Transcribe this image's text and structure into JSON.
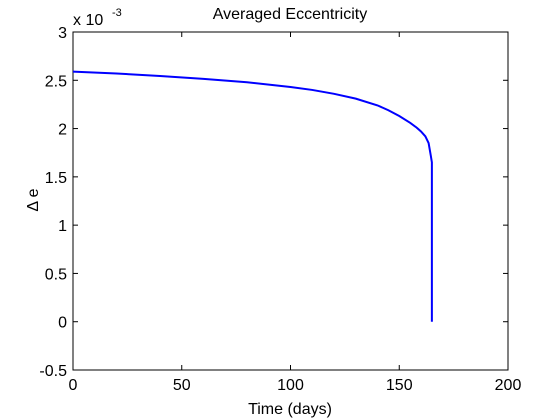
{
  "chart_data": {
    "type": "line",
    "title": "Averaged Eccentricity",
    "xlabel": "Time (days)",
    "ylabel": "Δ e",
    "y_multiplier_label": "x 10",
    "y_multiplier_exponent": "-3",
    "xlim": [
      0,
      200
    ],
    "ylim": [
      -0.5,
      3
    ],
    "x_ticks": [
      0,
      50,
      100,
      150,
      200
    ],
    "x_tick_labels": [
      "0",
      "50",
      "100",
      "150",
      "200"
    ],
    "y_ticks": [
      -0.5,
      0,
      0.5,
      1,
      1.5,
      2,
      2.5,
      3
    ],
    "y_tick_labels": [
      "-0.5",
      "0",
      "0.5",
      "1",
      "1.5",
      "2",
      "2.5",
      "3"
    ],
    "grid": false,
    "line_color": "#0000ff",
    "series": [
      {
        "x": [
          0,
          20,
          40,
          60,
          80,
          100,
          110,
          120,
          130,
          140,
          145,
          150,
          155,
          158,
          160,
          162,
          163.5,
          164.5,
          165,
          165,
          165
        ],
        "y": [
          2.59,
          2.57,
          2.545,
          2.515,
          2.48,
          2.43,
          2.4,
          2.36,
          2.31,
          2.24,
          2.19,
          2.13,
          2.06,
          2.01,
          1.97,
          1.92,
          1.85,
          1.72,
          1.65,
          0.5,
          0
        ]
      }
    ]
  }
}
